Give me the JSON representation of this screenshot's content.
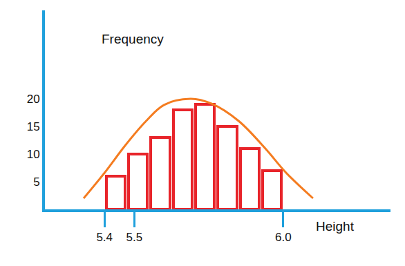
{
  "chart_data": {
    "type": "histogram",
    "xlabel": "Height",
    "ylabel": "Frequency",
    "bins": [
      5.4,
      5.475,
      5.55,
      5.625,
      5.7,
      5.775,
      5.85,
      5.925,
      6.0
    ],
    "values": [
      6,
      10,
      13,
      18,
      19,
      15,
      11,
      7
    ],
    "color": "#e8242a",
    "series": [
      {
        "type": "line",
        "color": "#f47c20",
        "x": [
          5.33,
          5.4,
          5.47,
          5.54,
          5.6,
          5.69,
          5.76,
          5.85,
          5.94,
          6.01,
          6.1
        ],
        "values": [
          2,
          6.6,
          11.6,
          16,
          18.9,
          20,
          19.1,
          16,
          11,
          6.6,
          2
        ]
      }
    ],
    "xlim": [
      5.2,
      6.36
    ],
    "ylim": [
      0,
      36
    ],
    "xticks": [
      5.4,
      5.5,
      {
        "value": 6,
        "label": "6.0"
      }
    ],
    "yticks": [
      5,
      10,
      15,
      20
    ],
    "grid": false,
    "legend": false
  }
}
